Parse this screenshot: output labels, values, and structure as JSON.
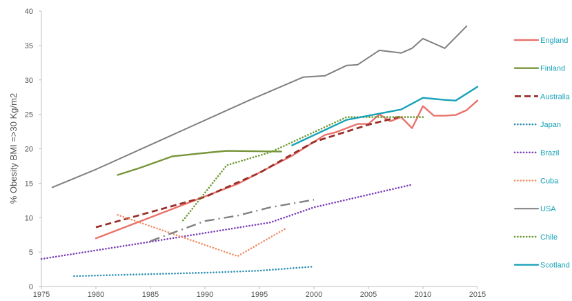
{
  "chart_data": {
    "type": "line",
    "title": "",
    "xlabel": "",
    "ylabel": "% Obesity BMI =>30 Kg/m2",
    "xlim": [
      1975,
      2015
    ],
    "ylim": [
      0,
      40
    ],
    "x_ticks": [
      "1975",
      "1980",
      "1985",
      "1990",
      "1995",
      "2000",
      "2005",
      "2010",
      "2015"
    ],
    "y_ticks": [
      "0",
      "5",
      "10",
      "15",
      "20",
      "25",
      "30",
      "35",
      "40"
    ],
    "grid": false,
    "legend_position": "right",
    "legend_text_color": "#17a2b8",
    "series": [
      {
        "name": "England",
        "color": "#e8726b",
        "dash": "solid",
        "width": 2.4,
        "points": [
          [
            1980,
            7.0
          ],
          [
            1993,
            14.9
          ],
          [
            1998,
            19.0
          ],
          [
            2000,
            21.0
          ],
          [
            2001,
            22.0
          ],
          [
            2002,
            22.4
          ],
          [
            2003,
            23.0
          ],
          [
            2004,
            23.6
          ],
          [
            2005,
            23.6
          ],
          [
            2006,
            25.0
          ],
          [
            2007,
            24.0
          ],
          [
            2008,
            24.6
          ],
          [
            2009,
            23.0
          ],
          [
            2010,
            26.2
          ],
          [
            2011,
            24.8
          ],
          [
            2012,
            24.8
          ],
          [
            2013,
            24.9
          ],
          [
            2014,
            25.6
          ],
          [
            2015,
            27.0
          ]
        ]
      },
      {
        "name": "Finland",
        "color": "#78953b",
        "dash": "solid",
        "width": 2.4,
        "points": [
          [
            1982,
            16.2
          ],
          [
            1984,
            17.2
          ],
          [
            1987,
            18.9
          ],
          [
            1990,
            19.4
          ],
          [
            1992,
            19.7
          ],
          [
            1997,
            19.6
          ]
        ]
      },
      {
        "name": "Australia",
        "color": "#9a2f2a",
        "dash": "long",
        "width": 2.8,
        "points": [
          [
            1980,
            8.6
          ],
          [
            1990,
            13.0
          ],
          [
            1995,
            16.5
          ],
          [
            2000,
            21.0
          ],
          [
            2005,
            23.5
          ],
          [
            2008,
            24.7
          ]
        ]
      },
      {
        "name": "Japan",
        "color": "#2e8fb3",
        "dash": "dot",
        "width": 2.6,
        "points": [
          [
            1978,
            1.5
          ],
          [
            1985,
            1.8
          ],
          [
            1990,
            2.0
          ],
          [
            1995,
            2.3
          ],
          [
            2000,
            2.9
          ]
        ]
      },
      {
        "name": "Brazil",
        "color": "#7b3fb8",
        "dash": "dot",
        "width": 2.6,
        "points": [
          [
            1975,
            4.0
          ],
          [
            1985,
            6.5
          ],
          [
            1996,
            9.3
          ],
          [
            2000,
            11.5
          ],
          [
            2009,
            14.8
          ]
        ]
      },
      {
        "name": "Cuba",
        "color": "#ef8f66",
        "dash": "dot",
        "width": 2.6,
        "points": [
          [
            1982,
            10.4
          ],
          [
            1993,
            4.4
          ],
          [
            1997.5,
            8.5
          ]
        ]
      },
      {
        "name": "USA",
        "color": "#7f7f7f",
        "dash": "solid",
        "width": 2.0,
        "points": [
          [
            1976,
            14.4
          ],
          [
            1980,
            17.0
          ],
          [
            1994,
            27.0
          ],
          [
            1999,
            30.4
          ],
          [
            2001,
            30.6
          ],
          [
            2003,
            32.1
          ],
          [
            2004,
            32.2
          ],
          [
            2006,
            34.3
          ],
          [
            2008,
            33.9
          ],
          [
            2009,
            34.6
          ],
          [
            2010,
            36.0
          ],
          [
            2012,
            34.6
          ],
          [
            2014,
            37.8
          ]
        ]
      },
      {
        "name": "",
        "color": "#7f7f7f",
        "dash": "dashdot",
        "width": 2.4,
        "points": [
          [
            1985,
            6.6
          ],
          [
            1990,
            9.5
          ],
          [
            1993,
            10.3
          ],
          [
            1996,
            11.5
          ],
          [
            2000,
            12.6
          ]
        ]
      },
      {
        "name": "Chile",
        "color": "#6e9a31",
        "dash": "dot",
        "width": 2.6,
        "points": [
          [
            1988,
            9.6
          ],
          [
            1992,
            17.6
          ],
          [
            1996,
            19.5
          ],
          [
            2003,
            24.6
          ],
          [
            2010,
            24.6
          ]
        ]
      },
      {
        "name": "Scotland",
        "color": "#17a2b8",
        "dash": "solid",
        "width": 2.4,
        "points": [
          [
            1998,
            20.5
          ],
          [
            2003,
            24.2
          ],
          [
            2005,
            24.8
          ],
          [
            2008,
            25.7
          ],
          [
            2010,
            27.4
          ],
          [
            2012,
            27.1
          ],
          [
            2013,
            27.0
          ],
          [
            2015,
            29.0
          ]
        ]
      }
    ]
  }
}
